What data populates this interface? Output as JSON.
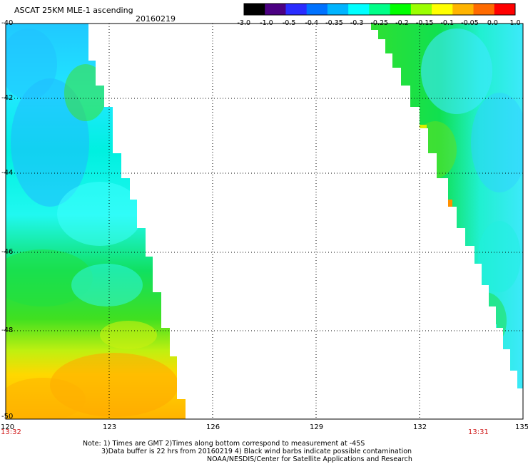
{
  "header": {
    "title": "ASCAT 25KM MLE-1 ascending",
    "date": "20160219"
  },
  "colorbar": {
    "labels": [
      "-3.0",
      "-1.0",
      "-0.5",
      "-0.4",
      "-0.35",
      "-0.3",
      "-0.25",
      "-0.2",
      "-0.15",
      "-0.1",
      "-0.05",
      "0.0",
      "1.0"
    ],
    "colors": [
      "#000000",
      "#4b0082",
      "#2a2cff",
      "#0072ff",
      "#00b4ff",
      "#00ffff",
      "#00ff88",
      "#00ff00",
      "#9bff00",
      "#ffff00",
      "#ffb400",
      "#ff6a00",
      "#ff0000"
    ]
  },
  "axes": {
    "y_labels": [
      "-40",
      "-42",
      "-44",
      "-46",
      "-48",
      "-50"
    ],
    "x_labels": [
      "120",
      "123",
      "126",
      "129",
      "132",
      "135"
    ],
    "lat_range": [
      -50,
      -40
    ],
    "lon_range": [
      120,
      135
    ]
  },
  "swath_times": {
    "left": "13:32",
    "right": "13:31"
  },
  "notes": {
    "line1": "Note: 1) Times are GMT 2)Times along bottom correspond to measurement at -45S",
    "line2": "3)Data buffer is 22 hrs from 20160219 4) Black wind barbs indicate possible contamination",
    "line3": "NOAA/NESDIS/Center for Satellite Applications and Research"
  }
}
